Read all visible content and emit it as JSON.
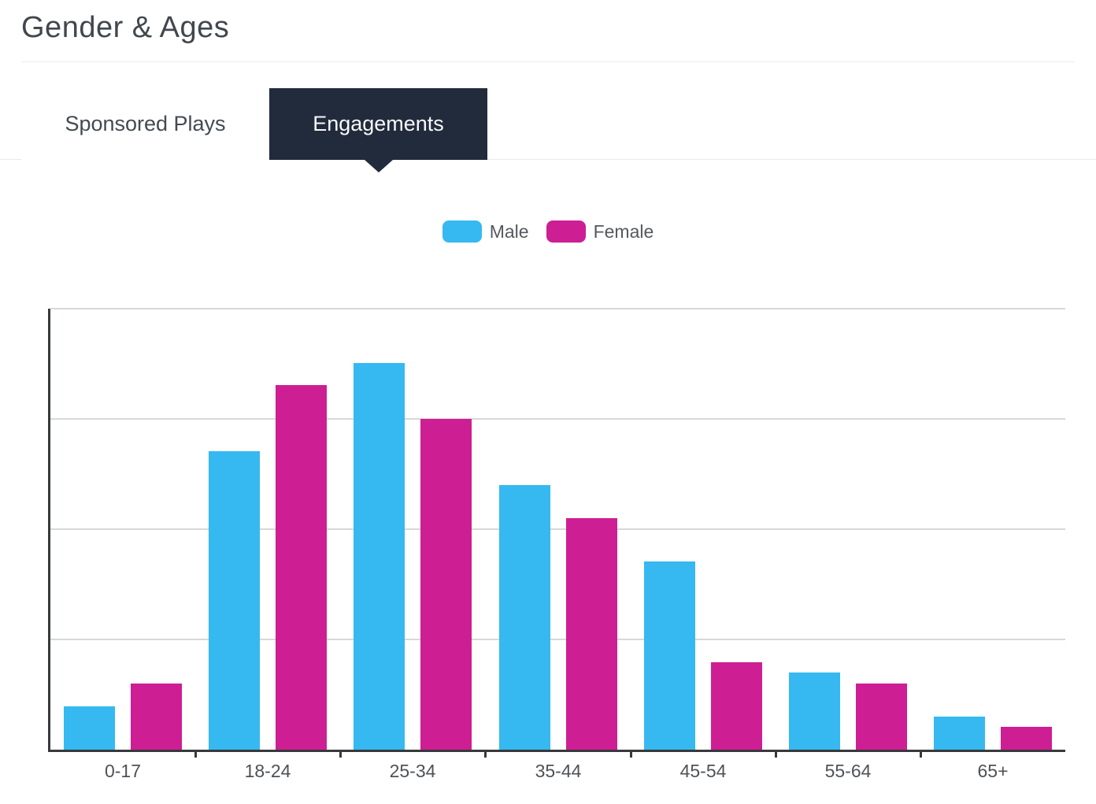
{
  "page": {
    "title": "Gender & Ages"
  },
  "tabs": [
    {
      "label": "Sponsored Plays",
      "active": false
    },
    {
      "label": "Engagements",
      "active": true
    }
  ],
  "legend": [
    {
      "label": "Male",
      "color": "#35b9f0"
    },
    {
      "label": "Female",
      "color": "#ce1e94"
    }
  ],
  "colors": {
    "male": "#35b9f0",
    "female": "#ce1e94",
    "active_tab_bg": "#212b3c",
    "axis": "#37393c",
    "gridline": "#d8d8d8"
  },
  "chart_data": {
    "type": "bar",
    "title": "Gender & Ages",
    "categories": [
      "0-17",
      "18-24",
      "25-34",
      "35-44",
      "45-54",
      "55-64",
      "65+"
    ],
    "series": [
      {
        "name": "Male",
        "color": "#35b9f0",
        "values": [
          0.39,
          2.71,
          3.51,
          2.4,
          1.71,
          0.7,
          0.3
        ]
      },
      {
        "name": "Female",
        "color": "#ce1e94",
        "values": [
          0.6,
          3.31,
          3.0,
          2.1,
          0.79,
          0.6,
          0.21
        ]
      }
    ],
    "xlabel": "",
    "ylabel": "",
    "ylim": [
      0,
      4
    ],
    "y_gridlines": [
      1,
      2,
      3,
      4
    ],
    "y_tick_labels_visible": false,
    "grid": true,
    "legend_position": "top-center"
  }
}
